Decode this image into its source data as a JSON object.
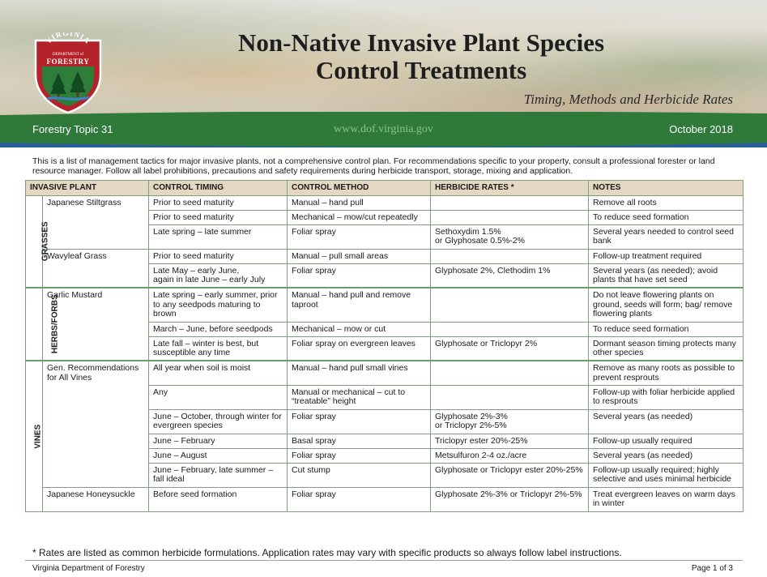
{
  "header": {
    "title_line1": "Non-Native Invasive Plant Species",
    "title_line2": "Control Treatments",
    "subtitle": "Timing, Methods and Herbicide Rates",
    "topic": "Forestry Topic 31",
    "website": "www.dof.virginia.gov",
    "date": "October 2018",
    "logo": {
      "arc_top": "VIRGINIA",
      "middle": "DEPARTMENT of",
      "bottom": "FORESTRY",
      "colors": {
        "red": "#b5232a",
        "green": "#2e7d3a",
        "white": "#ffffff"
      }
    }
  },
  "intro": "This is a list of management tactics for major invasive plants, not a comprehensive control plan. For recommendations specific to your property, consult a professional forester or land resource manager. Follow all label prohibitions, precautions and safety requirements during herbicide transport, storage, mixing and application.",
  "table": {
    "headers": [
      "INVASIVE PLANT",
      "CONTROL TIMING",
      "CONTROL METHOD",
      "HERBICIDE RATES *",
      "NOTES"
    ],
    "groups": [
      "GRASSES",
      "HERBS/FORBS",
      "VINES"
    ],
    "rows": [
      {
        "plant": "Japanese Stiltgrass",
        "timing": "Prior to seed maturity",
        "method": "Manual – hand pull",
        "rate": "",
        "notes": "Remove all roots"
      },
      {
        "plant": "",
        "timing": "Prior to seed maturity",
        "method": "Mechanical – mow/cut repeatedly",
        "rate": "",
        "notes": "To reduce seed formation"
      },
      {
        "plant": "",
        "timing": "Late spring – late summer",
        "method": "Foliar spray",
        "rate": "Sethoxydim 1.5%\nor Glyphosate 0.5%-2%",
        "notes": "Several years needed to control seed bank"
      },
      {
        "plant": "Wavyleaf Grass",
        "timing": "Prior to seed maturity",
        "method": "Manual – pull small areas",
        "rate": "",
        "notes": "Follow-up treatment required"
      },
      {
        "plant": "",
        "timing": "Late May – early June,\nagain in late June – early July",
        "method": "Foliar spray",
        "rate": "Glyphosate 2%, Clethodim 1%",
        "notes": "Several years (as needed); avoid plants that have set seed"
      },
      {
        "plant": "Garlic Mustard",
        "timing": "Late spring – early summer, prior to any seedpods maturing to brown",
        "method": "Manual – hand pull and remove taproot",
        "rate": "",
        "notes": "Do not leave flowering plants on ground, seeds will form; bag/ remove flowering plants"
      },
      {
        "plant": "",
        "timing": "March – June, before seedpods",
        "method": "Mechanical – mow or cut",
        "rate": "",
        "notes": "To reduce seed formation"
      },
      {
        "plant": "",
        "timing": "Late fall – winter is best, but susceptible any time",
        "method": "Foliar spray on evergreen leaves",
        "rate": "Glyphosate or Triclopyr 2%",
        "notes": "Dormant season timing protects many other species"
      },
      {
        "plant": "Gen. Recommendations for All Vines",
        "timing": "All year when soil is moist",
        "method": "Manual – hand pull small vines",
        "rate": "",
        "notes": "Remove as many roots as possible to prevent resprouts"
      },
      {
        "plant": "",
        "timing": "Any",
        "method": "Manual or mechanical – cut to “treatable” height",
        "rate": "",
        "notes": "Follow-up with foliar herbicide applied to resprouts"
      },
      {
        "plant": "",
        "timing": "June – October, through winter for evergreen species",
        "method": "Foliar spray",
        "rate": "Glyphosate 2%-3%\nor Triclopyr 2%-5%",
        "notes": "Several years (as needed)"
      },
      {
        "plant": "",
        "timing": "June – February",
        "method": "Basal spray",
        "rate": "Triclopyr ester 20%-25%",
        "notes": "Follow-up usually required"
      },
      {
        "plant": "",
        "timing": "June – August",
        "method": "Foliar spray",
        "rate": "Metsulfuron 2-4 oz./acre",
        "notes": "Several years (as needed)"
      },
      {
        "plant": "",
        "timing": "June – February, late summer – fall ideal",
        "method": "Cut stump",
        "rate": "Glyphosate or Triclopyr ester 20%-25%",
        "notes": "Follow-up usually required; highly selective and uses minimal herbicide"
      },
      {
        "plant": "Japanese Honeysuckle",
        "timing": "Before seed formation",
        "method": "Foliar spray",
        "rate": "Glyphosate 2%-3% or Triclopyr 2%-5%",
        "notes": "Treat evergreen leaves on warm days in winter"
      }
    ]
  },
  "footnote": "* Rates are listed as common herbicide formulations. Application rates may vary with specific products so always follow label instructions.",
  "footer": {
    "left": "Virginia Department of Forestry",
    "right": "Page 1 of 3"
  },
  "colors": {
    "band_green": "#2f7a3a",
    "header_cell": "#e4d8c3",
    "grid": "#7fa07d"
  }
}
